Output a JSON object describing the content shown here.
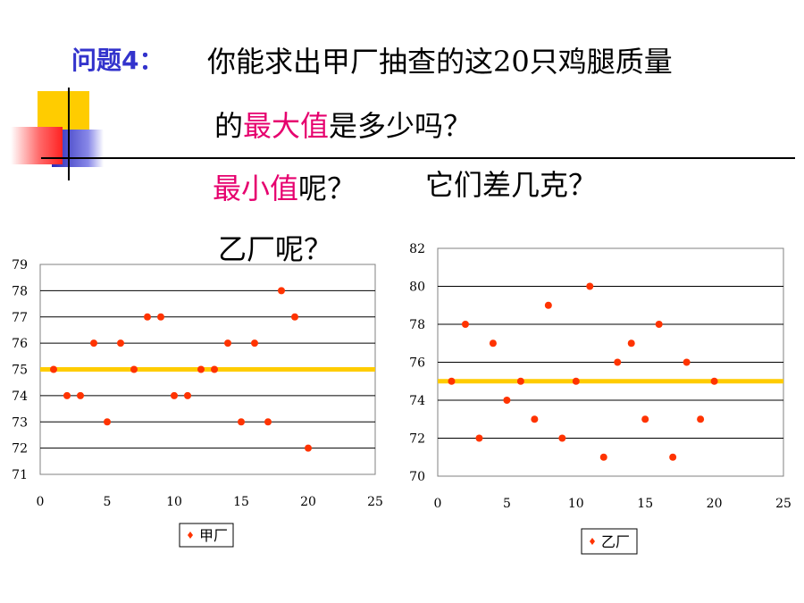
{
  "question": {
    "label": "问题4：",
    "line1": "你能求出甲厂抽查的这20只鸡腿质量",
    "line2_pre": "的",
    "line2_hl": "最大值",
    "line2_post": "是多少吗？",
    "line3_hl": "最小值",
    "line3_post": "呢？",
    "line3_right": "它们差几克？",
    "line4": "乙厂呢？"
  },
  "colors": {
    "title_blue": "#3333cc",
    "highlight_pink": "#e6006e",
    "point_red": "#ff3300",
    "mean_line": "#ffcc00"
  },
  "chart_data": [
    {
      "type": "scatter",
      "legend": [
        "甲厂"
      ],
      "legend_position": "bottom",
      "xlim": [
        0,
        25
      ],
      "ylim": [
        71,
        79
      ],
      "x_ticks": [
        "0",
        "5",
        "10",
        "15",
        "20",
        "25"
      ],
      "y_ticks": [
        "71",
        "72",
        "73",
        "74",
        "75",
        "76",
        "77",
        "78",
        "79"
      ],
      "grid": "horizontal",
      "mean_line": 75,
      "series": [
        {
          "name": "甲厂",
          "x": [
            1,
            2,
            3,
            4,
            5,
            6,
            7,
            8,
            9,
            10,
            11,
            12,
            13,
            14,
            15,
            16,
            17,
            18,
            19,
            20
          ],
          "values": [
            75,
            74,
            74,
            76,
            73,
            76,
            75,
            77,
            77,
            74,
            74,
            75,
            75,
            76,
            73,
            76,
            73,
            78,
            77,
            72
          ]
        }
      ]
    },
    {
      "type": "scatter",
      "legend": [
        "乙厂"
      ],
      "legend_position": "bottom",
      "xlim": [
        0,
        25
      ],
      "ylim": [
        70,
        82
      ],
      "x_ticks": [
        "0",
        "5",
        "10",
        "15",
        "20",
        "25"
      ],
      "y_ticks": [
        "70",
        "72",
        "74",
        "76",
        "78",
        "80",
        "82"
      ],
      "grid": "horizontal",
      "mean_line": 75,
      "series": [
        {
          "name": "乙厂",
          "x": [
            1,
            2,
            3,
            4,
            5,
            6,
            7,
            8,
            9,
            10,
            11,
            12,
            13,
            14,
            15,
            16,
            17,
            18,
            19,
            20
          ],
          "values": [
            75,
            78,
            72,
            77,
            74,
            75,
            73,
            79,
            72,
            75,
            80,
            71,
            76,
            77,
            73,
            78,
            71,
            76,
            73,
            75
          ]
        }
      ]
    }
  ]
}
